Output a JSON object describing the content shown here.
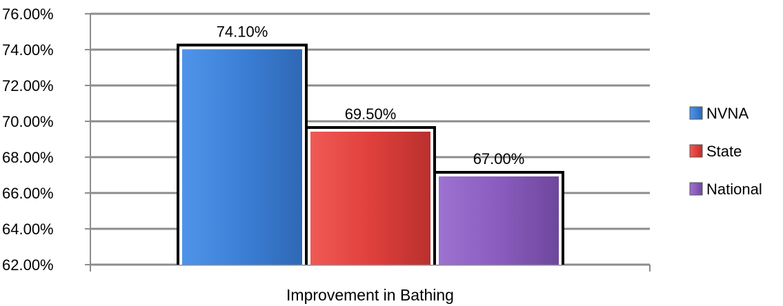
{
  "chart_data": {
    "type": "bar",
    "categories": [
      "Improvement in Bathing"
    ],
    "series": [
      {
        "name": "NVNA",
        "values": [
          74.1
        ],
        "label": "74.10%",
        "color": "#3b7fd6"
      },
      {
        "name": "State",
        "values": [
          69.5
        ],
        "label": "69.50%",
        "color": "#e0403c"
      },
      {
        "name": "National",
        "values": [
          67.0
        ],
        "label": "67.00%",
        "color": "#8a5cbf"
      }
    ],
    "xlabel": "Improvement in Bathing",
    "ylabel": "",
    "ylim": [
      62,
      76
    ],
    "yticks": [
      62,
      64,
      66,
      68,
      70,
      72,
      74,
      76
    ],
    "ytick_labels": [
      "62.00%",
      "64.00%",
      "66.00%",
      "68.00%",
      "70.00%",
      "72.00%",
      "74.00%",
      "76.00%"
    ],
    "grid": true,
    "legend_position": "right"
  }
}
